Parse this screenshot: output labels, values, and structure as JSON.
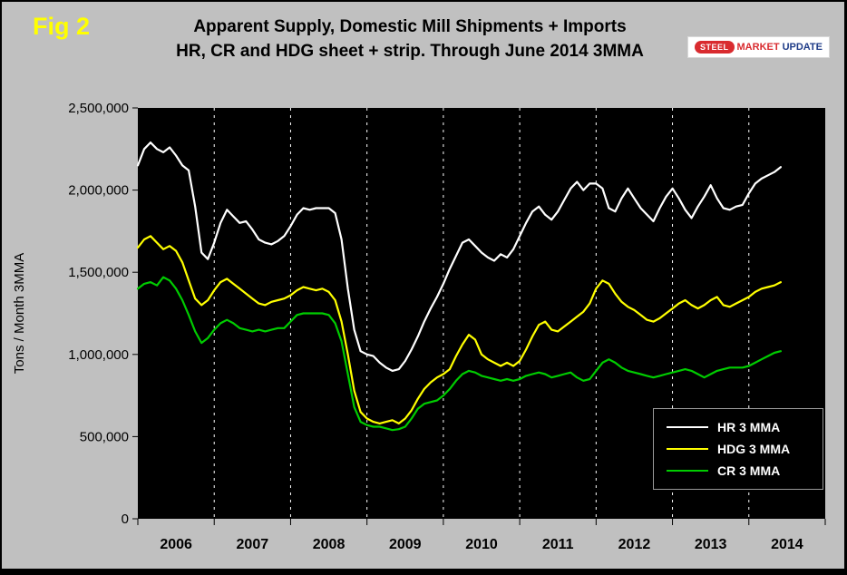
{
  "figure_label": "Fig 2",
  "title": {
    "line1": "Apparent Supply, Domestic Mill Shipments + Imports",
    "line2": "HR, CR and HDG sheet + strip. Through June 2014 3MMA"
  },
  "logo": {
    "steel": "STEEL",
    "market": "MARKET",
    "update": "UPDATE"
  },
  "colors": {
    "background": "#C0C0C0",
    "plot_background": "#000000",
    "fig_label": "#FFFF00",
    "hr": "#FFFFFF",
    "hdg": "#FFFF00",
    "cr": "#00CC00"
  },
  "chart_data": {
    "type": "line",
    "title": "Apparent Supply, Domestic Mill Shipments + Imports HR, CR and HDG sheet + strip. Through June 2014 3MMA",
    "xlabel": "",
    "ylabel": "Tons / Month 3MMA",
    "ylim": [
      0,
      2500000
    ],
    "ytick_step": 500000,
    "ytick_labels": [
      "0",
      "500,000",
      "1,000,000",
      "1,500,000",
      "2,000,000",
      "2,500,000"
    ],
    "x_years": [
      "2006",
      "2007",
      "2008",
      "2009",
      "2010",
      "2011",
      "2012",
      "2013",
      "2014"
    ],
    "x_start": "2006-01",
    "x_end": "2014-06",
    "axis_months": 108,
    "grid": "vertical-dashed-at-year-boundaries",
    "legend_position": "bottom-right",
    "series": [
      {
        "name": "HR 3 MMA",
        "color": "#FFFFFF",
        "values": [
          2150000,
          2250000,
          2290000,
          2250000,
          2230000,
          2260000,
          2210000,
          2150000,
          2120000,
          1900000,
          1620000,
          1580000,
          1680000,
          1800000,
          1880000,
          1840000,
          1800000,
          1810000,
          1760000,
          1700000,
          1680000,
          1670000,
          1690000,
          1720000,
          1780000,
          1850000,
          1890000,
          1880000,
          1890000,
          1890000,
          1890000,
          1860000,
          1700000,
          1400000,
          1150000,
          1020000,
          1000000,
          990000,
          950000,
          920000,
          900000,
          910000,
          960000,
          1030000,
          1110000,
          1200000,
          1280000,
          1350000,
          1430000,
          1520000,
          1600000,
          1680000,
          1700000,
          1660000,
          1620000,
          1590000,
          1570000,
          1610000,
          1590000,
          1640000,
          1720000,
          1800000,
          1870000,
          1900000,
          1850000,
          1820000,
          1870000,
          1940000,
          2010000,
          2050000,
          2000000,
          2040000,
          2040000,
          2010000,
          1890000,
          1870000,
          1950000,
          2010000,
          1950000,
          1890000,
          1850000,
          1810000,
          1890000,
          1960000,
          2010000,
          1950000,
          1880000,
          1830000,
          1900000,
          1960000,
          2030000,
          1950000,
          1890000,
          1880000,
          1900000,
          1910000,
          1980000,
          2040000,
          2070000,
          2090000,
          2110000,
          2140000
        ]
      },
      {
        "name": "HDG 3 MMA",
        "color": "#FFFF00",
        "values": [
          1650000,
          1700000,
          1720000,
          1680000,
          1640000,
          1660000,
          1630000,
          1560000,
          1450000,
          1340000,
          1300000,
          1330000,
          1390000,
          1440000,
          1460000,
          1430000,
          1400000,
          1370000,
          1340000,
          1310000,
          1300000,
          1320000,
          1330000,
          1340000,
          1360000,
          1390000,
          1410000,
          1400000,
          1390000,
          1400000,
          1380000,
          1330000,
          1200000,
          1000000,
          780000,
          650000,
          610000,
          590000,
          580000,
          590000,
          600000,
          580000,
          610000,
          660000,
          730000,
          790000,
          830000,
          860000,
          880000,
          910000,
          990000,
          1060000,
          1120000,
          1090000,
          1000000,
          970000,
          950000,
          930000,
          950000,
          930000,
          960000,
          1030000,
          1110000,
          1180000,
          1200000,
          1150000,
          1140000,
          1170000,
          1200000,
          1230000,
          1260000,
          1310000,
          1400000,
          1450000,
          1430000,
          1370000,
          1320000,
          1290000,
          1270000,
          1240000,
          1210000,
          1200000,
          1220000,
          1250000,
          1280000,
          1310000,
          1330000,
          1300000,
          1280000,
          1300000,
          1330000,
          1350000,
          1300000,
          1290000,
          1310000,
          1330000,
          1350000,
          1380000,
          1400000,
          1410000,
          1420000,
          1440000
        ]
      },
      {
        "name": "CR 3 MMA",
        "color": "#00CC00",
        "values": [
          1400000,
          1430000,
          1440000,
          1420000,
          1470000,
          1450000,
          1400000,
          1330000,
          1240000,
          1140000,
          1070000,
          1100000,
          1150000,
          1190000,
          1210000,
          1190000,
          1160000,
          1150000,
          1140000,
          1150000,
          1140000,
          1150000,
          1160000,
          1160000,
          1200000,
          1240000,
          1250000,
          1250000,
          1250000,
          1250000,
          1240000,
          1190000,
          1080000,
          880000,
          680000,
          590000,
          570000,
          560000,
          560000,
          550000,
          540000,
          545000,
          560000,
          610000,
          670000,
          700000,
          710000,
          720000,
          750000,
          790000,
          840000,
          880000,
          900000,
          890000,
          870000,
          860000,
          850000,
          840000,
          850000,
          840000,
          850000,
          870000,
          880000,
          890000,
          880000,
          860000,
          870000,
          880000,
          890000,
          860000,
          840000,
          850000,
          900000,
          950000,
          970000,
          950000,
          920000,
          900000,
          890000,
          880000,
          870000,
          860000,
          870000,
          880000,
          890000,
          900000,
          910000,
          900000,
          880000,
          860000,
          880000,
          900000,
          910000,
          920000,
          920000,
          920000,
          930000,
          950000,
          970000,
          990000,
          1010000,
          1020000
        ]
      }
    ]
  }
}
